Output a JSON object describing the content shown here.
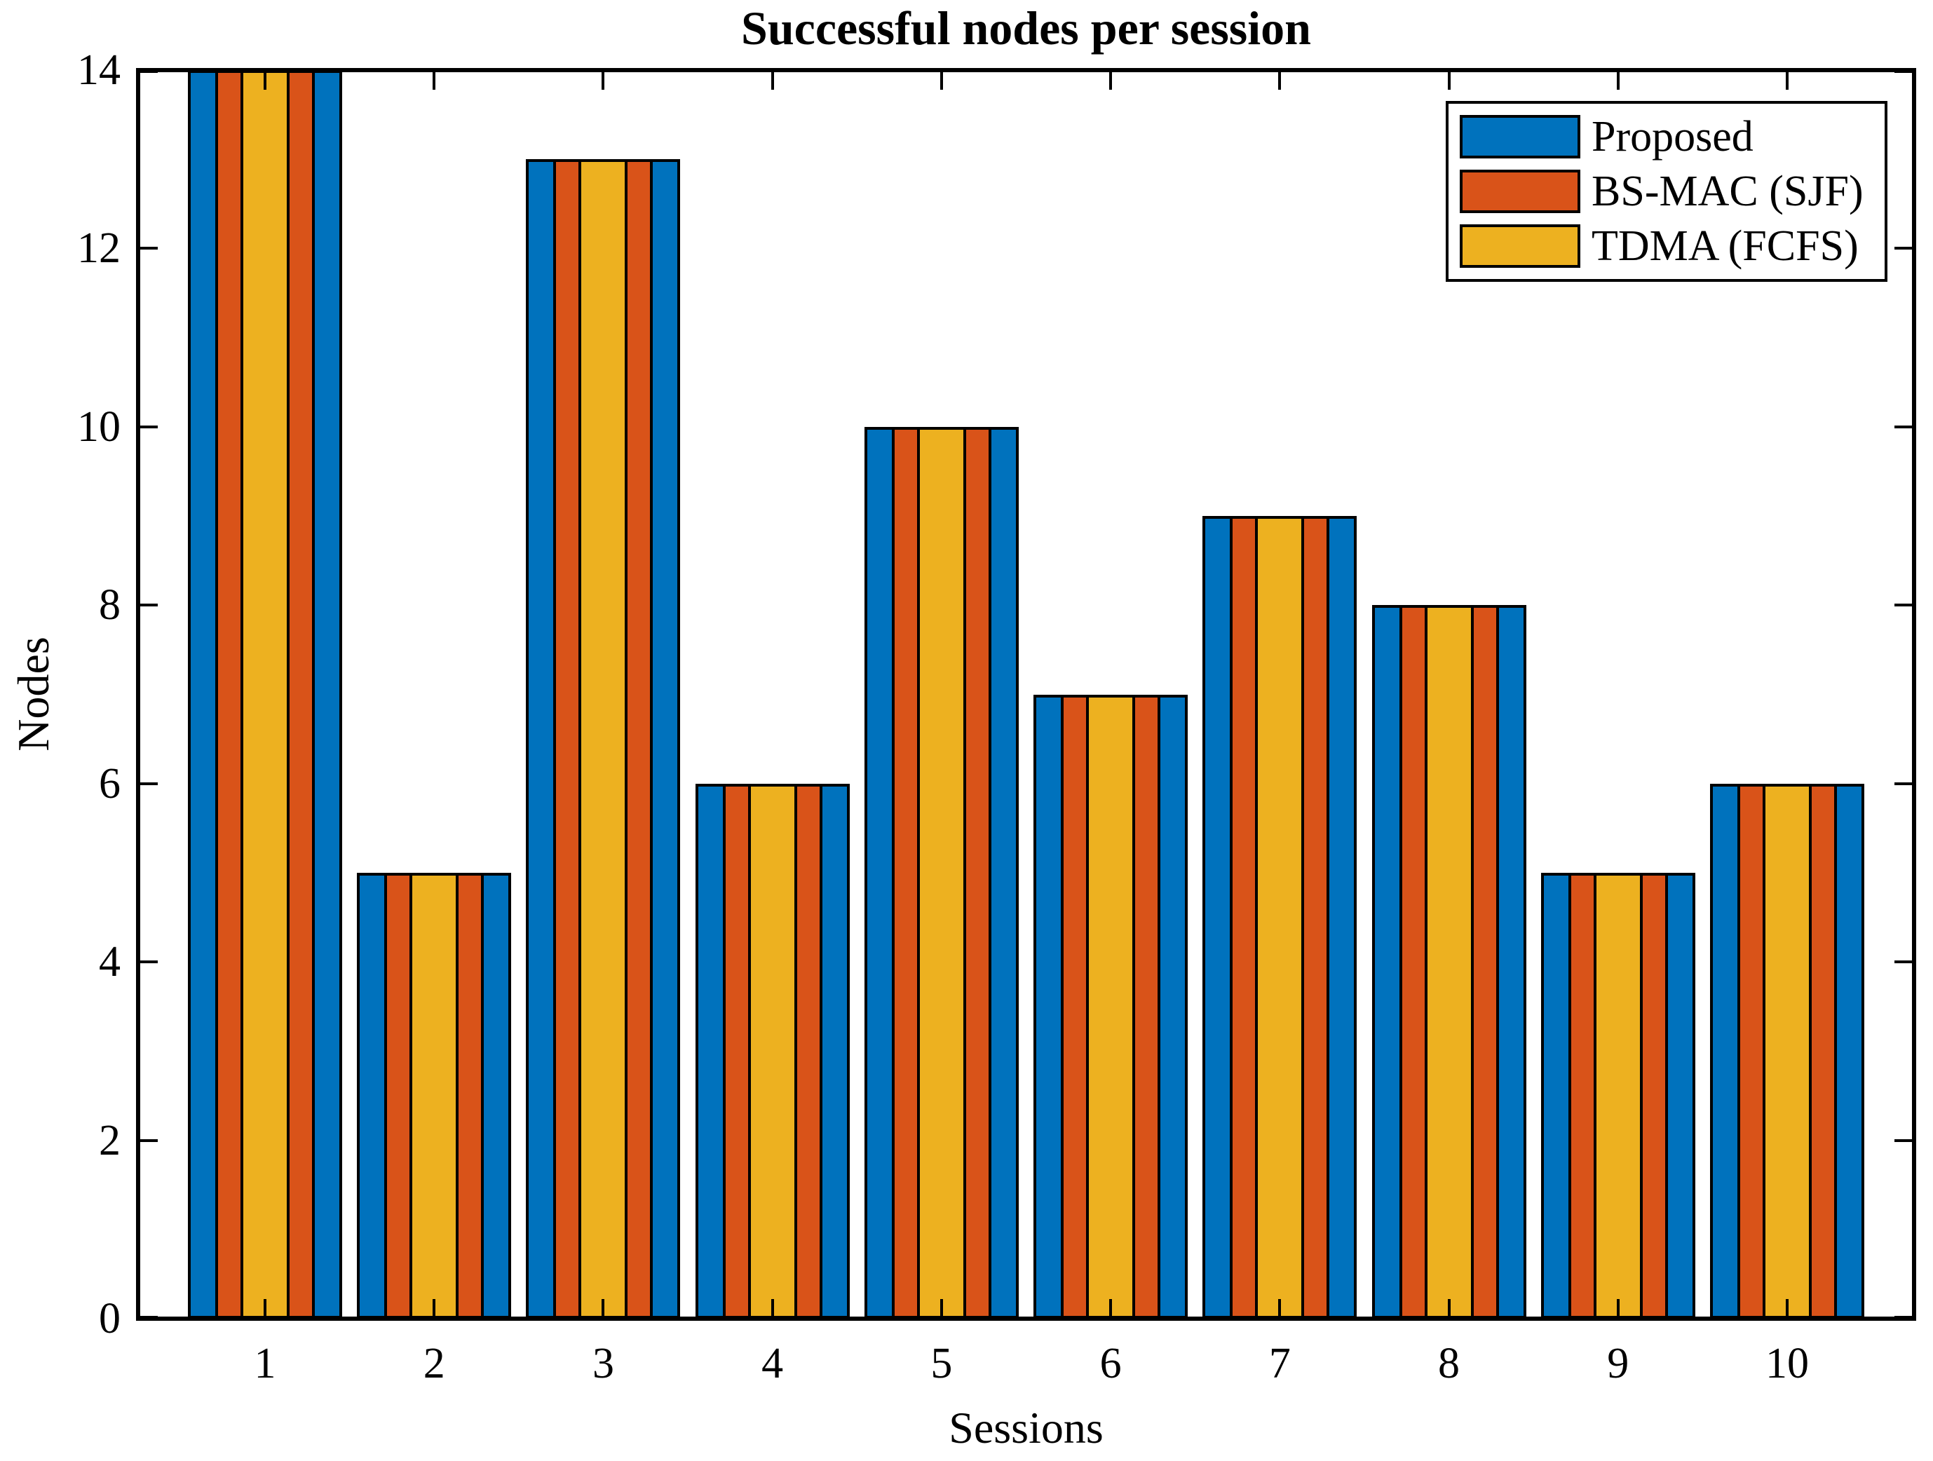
{
  "figure": {
    "title": "Successful nodes per session",
    "xlabel": "Sessions",
    "ylabel": "Nodes"
  },
  "legend": {
    "items": [
      {
        "label": "Proposed",
        "color": "#0072BD"
      },
      {
        "label": "BS-MAC (SJF)",
        "color": "#D95319"
      },
      {
        "label": "TDMA (FCFS)",
        "color": "#EDB120"
      }
    ]
  },
  "chart_data": {
    "type": "bar",
    "title": "Successful nodes per session",
    "xlabel": "Sessions",
    "ylabel": "Nodes",
    "categories": [
      1,
      2,
      3,
      4,
      5,
      6,
      7,
      8,
      9,
      10
    ],
    "series": [
      {
        "name": "Proposed",
        "color": "#0072BD",
        "values": [
          14,
          5,
          13,
          6,
          10,
          7,
          9,
          8,
          5,
          6
        ]
      },
      {
        "name": "BS-MAC (SJF)",
        "color": "#D95319",
        "values": [
          14,
          5,
          13,
          6,
          10,
          7,
          9,
          8,
          5,
          6
        ]
      },
      {
        "name": "TDMA (FCFS)",
        "color": "#EDB120",
        "values": [
          14,
          5,
          13,
          6,
          10,
          7,
          9,
          8,
          5,
          6
        ]
      }
    ],
    "ylim": [
      0,
      14
    ],
    "yticks": [
      0,
      2,
      4,
      6,
      8,
      10,
      12,
      14
    ],
    "bar_style": "overlapped",
    "edge_color": "#000000",
    "grid": false,
    "legend_position": "northeast"
  }
}
